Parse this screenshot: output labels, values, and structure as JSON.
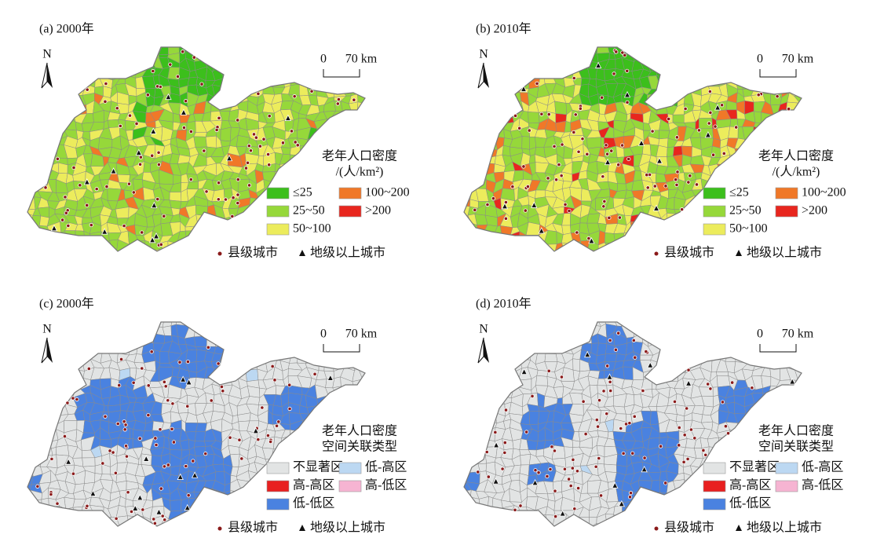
{
  "panels": [
    {
      "title": "(a) 2000年",
      "north": "N",
      "scale_start": "0",
      "scale_end": "70 km",
      "legend_title": [
        "老年人口密度",
        "/(人/km²)"
      ],
      "legend": [
        {
          "label": "≤25",
          "color": "#3cbf1c"
        },
        {
          "label": "100~200",
          "color": "#f07828"
        },
        {
          "label": "25~50",
          "color": "#96d83a"
        },
        {
          "label": ">200",
          "color": "#e8261e"
        },
        {
          "label": "50~100",
          "color": "#ecec5c"
        }
      ],
      "point_legend": [
        "县级城市",
        "地级以上城市"
      ]
    },
    {
      "title": "(b) 2010年",
      "north": "N",
      "scale_start": "0",
      "scale_end": "70 km",
      "legend_title": [
        "老年人口密度",
        "/(人/km²)"
      ],
      "legend": [
        {
          "label": "≤25",
          "color": "#3cbf1c"
        },
        {
          "label": "100~200",
          "color": "#f07828"
        },
        {
          "label": "25~50",
          "color": "#96d83a"
        },
        {
          "label": ">200",
          "color": "#e8261e"
        },
        {
          "label": "50~100",
          "color": "#ecec5c"
        }
      ],
      "point_legend": [
        "县级城市",
        "地级以上城市"
      ]
    },
    {
      "title": "(c) 2000年",
      "north": "N",
      "scale_start": "0",
      "scale_end": "70 km",
      "legend_title": [
        "老年人口密度",
        "空间关联类型"
      ],
      "legend": [
        {
          "label": "不显著区",
          "color": "#e2e4e4"
        },
        {
          "label": "低-高区",
          "color": "#bcd8f2"
        },
        {
          "label": "高-高区",
          "color": "#e82020"
        },
        {
          "label": "高-低区",
          "color": "#f6b4d2"
        },
        {
          "label": "低-低区",
          "color": "#4a82e0"
        }
      ],
      "point_legend": [
        "县级城市",
        "地级以上城市"
      ]
    },
    {
      "title": "(d) 2010年",
      "north": "N",
      "scale_start": "0",
      "scale_end": "70 km",
      "legend_title": [
        "老年人口密度",
        "空间关联类型"
      ],
      "legend": [
        {
          "label": "不显著区",
          "color": "#e2e4e4"
        },
        {
          "label": "低-高区",
          "color": "#bcd8f2"
        },
        {
          "label": "高-高区",
          "color": "#e82020"
        },
        {
          "label": "高-低区",
          "color": "#f6b4d2"
        },
        {
          "label": "低-低区",
          "color": "#4a82e0"
        }
      ],
      "point_legend": [
        "县级城市",
        "地级以上城市"
      ]
    }
  ]
}
